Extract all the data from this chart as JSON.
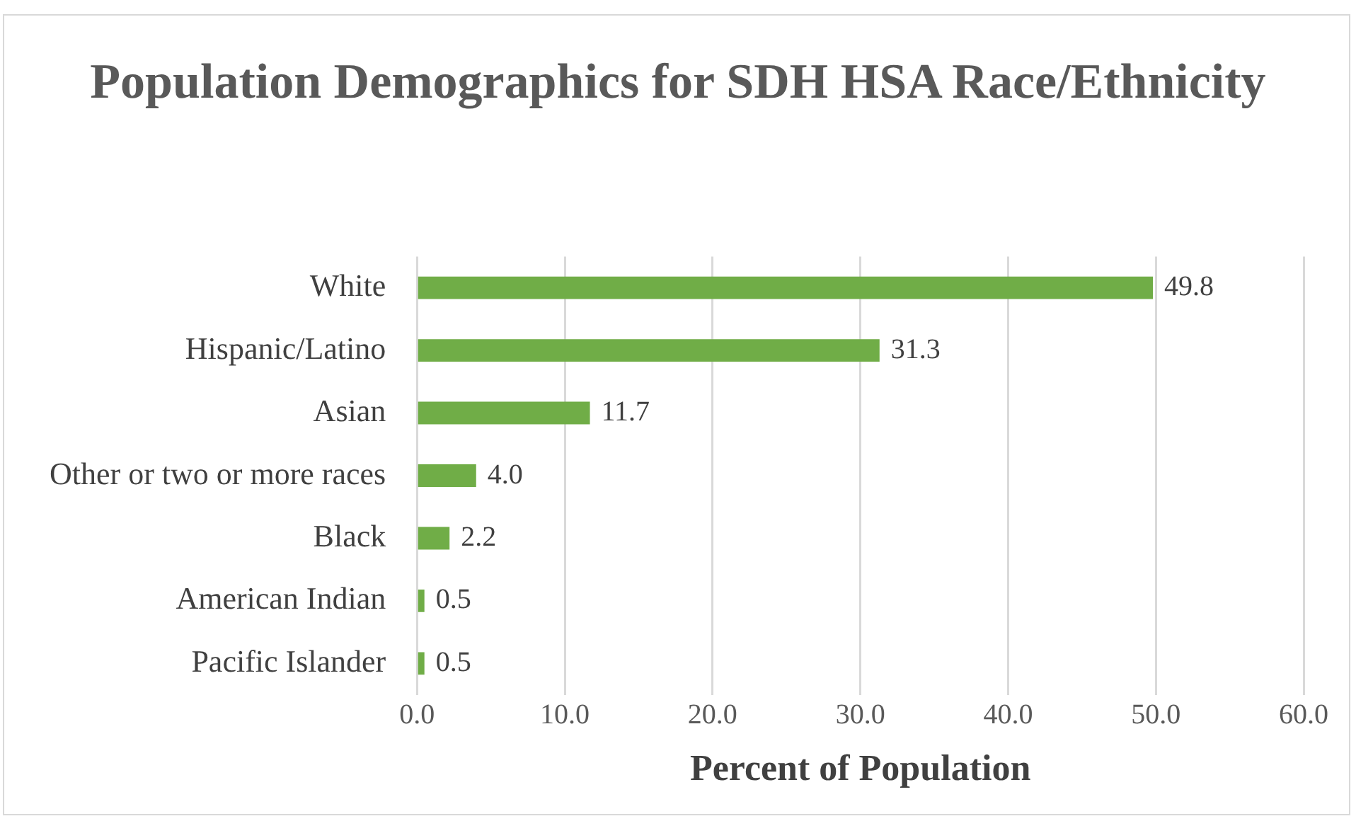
{
  "chart_data": {
    "type": "bar",
    "orientation": "horizontal",
    "title": "Population Demographics for SDH HSA Race/Ethnicity",
    "xlabel": "Percent of Population",
    "categories": [
      "White",
      "Hispanic/Latino",
      "Asian",
      "Other or two or more races",
      "Black",
      "American Indian",
      "Pacific Islander"
    ],
    "values": [
      49.8,
      31.3,
      11.7,
      4.0,
      2.2,
      0.5,
      0.5
    ],
    "value_labels": [
      "49.8",
      "31.3",
      "11.7",
      "4.0",
      "2.2",
      "0.5",
      "0.5"
    ],
    "color": "#70ad47",
    "xlim": [
      0,
      60
    ],
    "xticks": [
      {
        "value": 0,
        "label": "0.0"
      },
      {
        "value": 10,
        "label": "10.0"
      },
      {
        "value": 20,
        "label": "20.0"
      },
      {
        "value": 30,
        "label": "30.0"
      },
      {
        "value": 40,
        "label": "40.0"
      },
      {
        "value": 50,
        "label": "50.0"
      },
      {
        "value": 60,
        "label": "60.0"
      }
    ],
    "grid": "x",
    "legend": false
  }
}
